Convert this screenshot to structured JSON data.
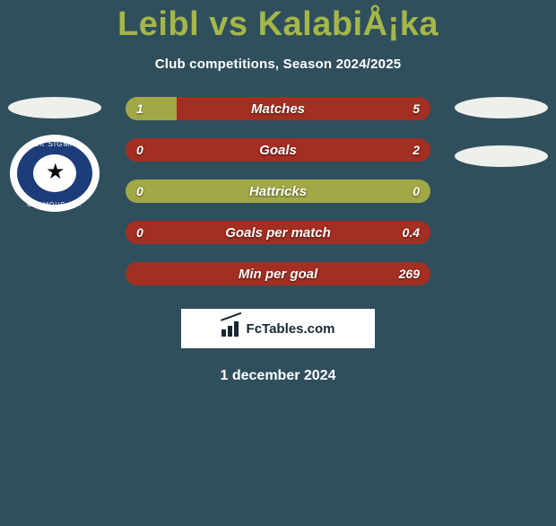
{
  "title": "Leibl vs KalabiÅ¡ka",
  "subtitle": "Club competitions, Season 2024/2025",
  "date": "1 december 2024",
  "footer_brand": "FcTables.com",
  "badge": {
    "top_text": "SK SIGMA",
    "bottom_text": "OLOMOUC a.s.",
    "ring_color": "#ffffff",
    "inner_color": "#1c3c7a",
    "star_color": "#0a0a0a"
  },
  "colors": {
    "background": "#304f5d",
    "title": "#a4b748",
    "bar_left": "#a2a648",
    "bar_right": "#a22f22",
    "bar_neutral": "#a2a648",
    "text": "#ffffff"
  },
  "bars": [
    {
      "label": "Matches",
      "left": "1",
      "right": "5",
      "left_pct": 16.7,
      "right_pct": 83.3,
      "left_color": "#a2a845",
      "right_color": "#a22f22"
    },
    {
      "label": "Goals",
      "left": "0",
      "right": "2",
      "left_pct": 0,
      "right_pct": 100,
      "left_color": "#a2a845",
      "right_color": "#a22f22"
    },
    {
      "label": "Hattricks",
      "left": "0",
      "right": "0",
      "left_pct": 100,
      "right_pct": 0,
      "left_color": "#a2a845",
      "right_color": "#a22f22"
    },
    {
      "label": "Goals per match",
      "left": "0",
      "right": "0.4",
      "left_pct": 0,
      "right_pct": 100,
      "left_color": "#a2a845",
      "right_color": "#a22f22"
    },
    {
      "label": "Min per goal",
      "left": "",
      "right": "269",
      "left_pct": 0,
      "right_pct": 100,
      "left_color": "#a2a845",
      "right_color": "#a22f22"
    }
  ]
}
